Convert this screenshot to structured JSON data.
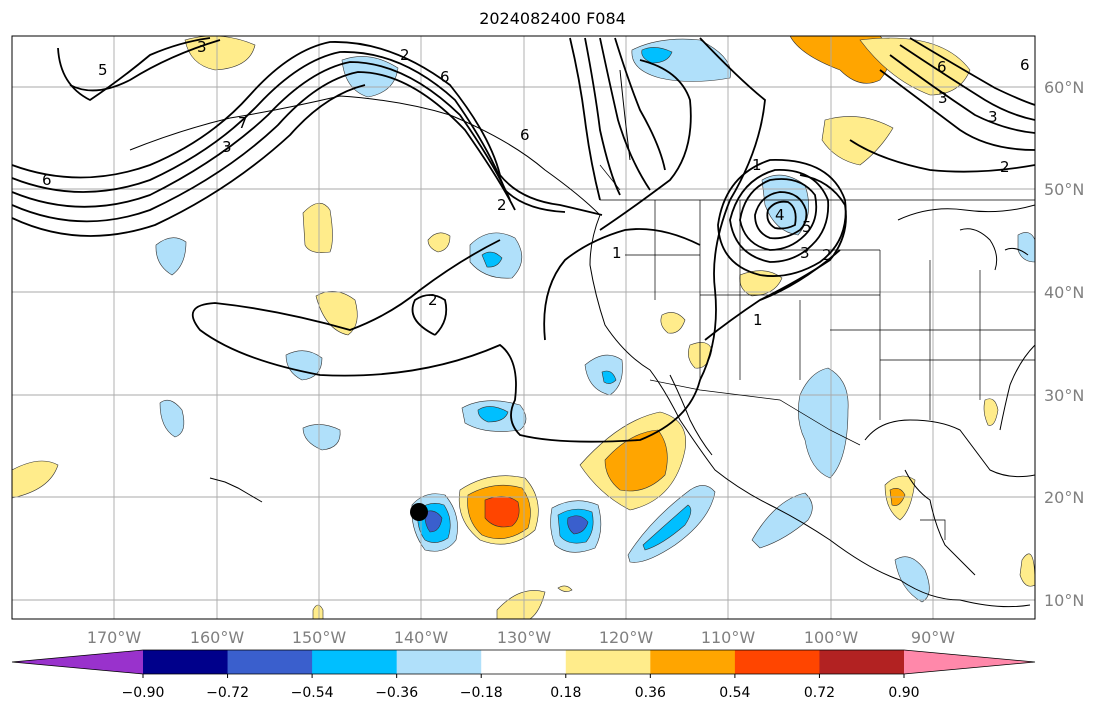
{
  "title": "2024082400 F084",
  "map": {
    "lat_labels": [
      "60°N",
      "50°N",
      "40°N",
      "30°N",
      "20°N",
      "10°N"
    ],
    "lon_labels": [
      "170°W",
      "160°W",
      "150°W",
      "140°W",
      "130°W",
      "120°W",
      "110°W",
      "100°W",
      "90°W"
    ],
    "contour_labels": [
      "5",
      "6",
      "7",
      "6",
      "3",
      "2",
      "1",
      "2",
      "1",
      "2",
      "3",
      "4",
      "5",
      "6",
      "3",
      "2",
      "1",
      "6",
      "3",
      "3",
      "2",
      "6"
    ]
  },
  "colorbar": {
    "colors": [
      "#9932cc",
      "#00008b",
      "#3a5fcd",
      "#00bfff",
      "#b0e0fa",
      "#ffffff",
      "#ffec8b",
      "#ffa500",
      "#ff4500",
      "#b22222",
      "#ff88aa"
    ],
    "tick_labels": [
      "−0.90",
      "−0.72",
      "−0.54",
      "−0.36",
      "−0.18",
      "0.18",
      "0.36",
      "0.54",
      "0.72",
      "0.90"
    ]
  }
}
